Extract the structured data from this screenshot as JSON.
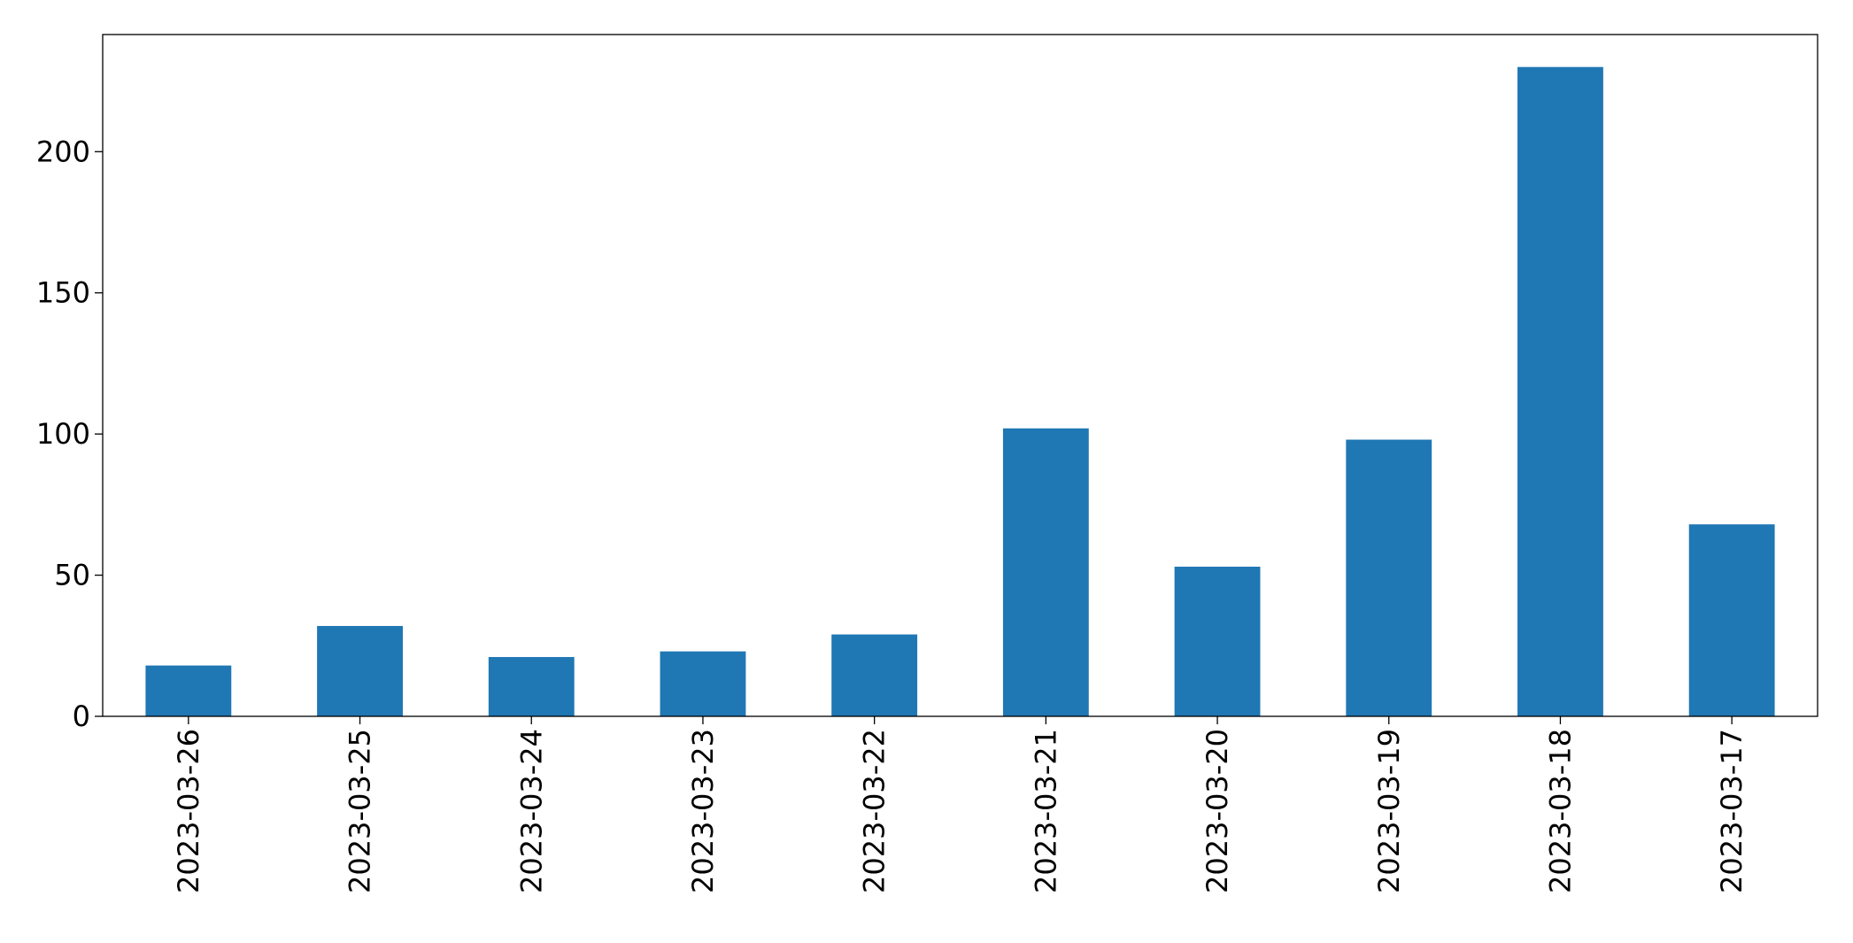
{
  "chart_data": {
    "type": "bar",
    "categories": [
      "2023-03-26",
      "2023-03-25",
      "2023-03-24",
      "2023-03-23",
      "2023-03-22",
      "2023-03-21",
      "2023-03-20",
      "2023-03-19",
      "2023-03-18",
      "2023-03-17"
    ],
    "values": [
      18,
      32,
      21,
      23,
      29,
      102,
      53,
      98,
      230,
      68
    ],
    "color": "#1f77b4",
    "ylim": [
      0,
      241.5
    ],
    "yticks": [
      0,
      50,
      100,
      150,
      200
    ],
    "grid": false
  }
}
